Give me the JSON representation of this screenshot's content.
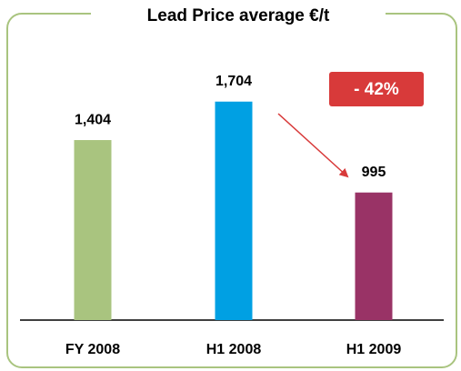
{
  "chart_data": {
    "type": "bar",
    "title": "Lead Price average €/t",
    "categories": [
      "FY 2008",
      "H1 2008",
      "H1 2009"
    ],
    "values": [
      1404,
      1704,
      995
    ],
    "value_labels": [
      "1,404",
      "1,704",
      "995"
    ],
    "colors": [
      "#a9c47f",
      "#00a0e3",
      "#993366"
    ],
    "ylim": [
      0,
      2000
    ],
    "annotation": "- 42%"
  }
}
